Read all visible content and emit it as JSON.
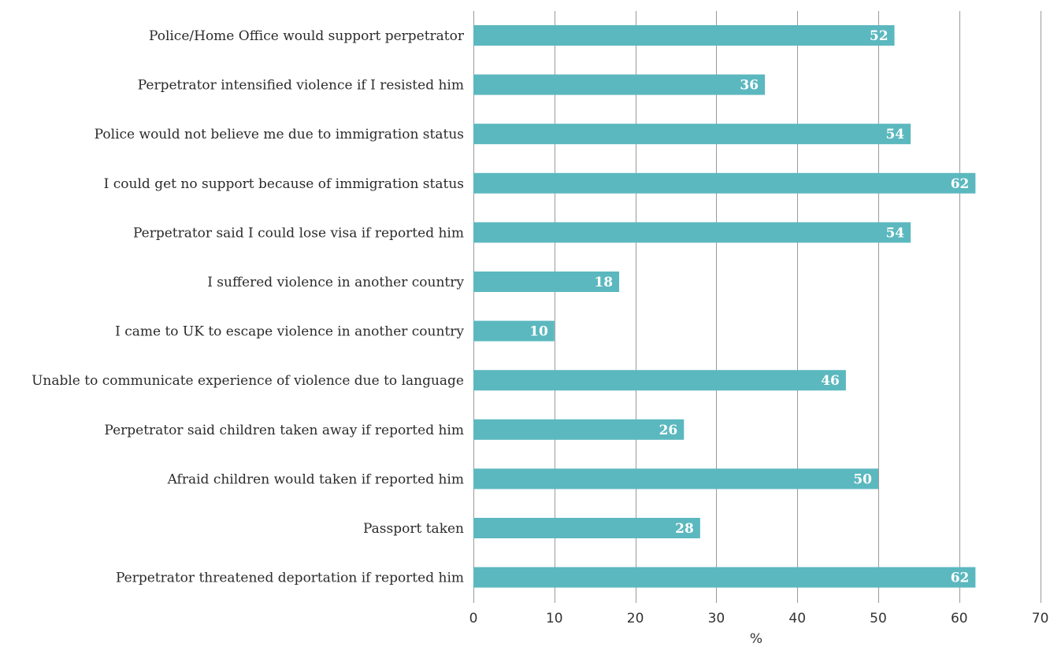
{
  "chart_data": {
    "type": "bar",
    "orientation": "horizontal",
    "categories": [
      "Police/Home Office would support perpetrator",
      "Perpetrator intensified violence if I resisted him",
      "Police would not believe me due to immigration status",
      "I could get no support because of immigration status",
      "Perpetrator said I could lose visa if reported him",
      "I suffered violence in another country",
      "I came to UK to escape violence in another country",
      "Unable to communicate experience of violence due to language",
      "Perpetrator said children taken away if reported him",
      "Afraid children would taken if reported him",
      "Passport taken",
      "Perpetrator threatened deportation if reported him"
    ],
    "values": [
      52,
      36,
      54,
      62,
      54,
      18,
      10,
      46,
      26,
      50,
      28,
      62
    ],
    "data_labels": [
      "52",
      "36",
      "54",
      "62",
      "54",
      "18",
      "10",
      "46",
      "26",
      "50",
      "28",
      "62"
    ],
    "xlabel": "%",
    "ylabel": "",
    "xlim": [
      0,
      70
    ],
    "xticks": [
      0,
      10,
      20,
      30,
      40,
      50,
      60,
      70
    ],
    "xtick_labels": [
      "0",
      "10",
      "20",
      "30",
      "40",
      "50",
      "60",
      "70"
    ],
    "grid": "vertical",
    "bar_color": "#5bb8bf"
  }
}
